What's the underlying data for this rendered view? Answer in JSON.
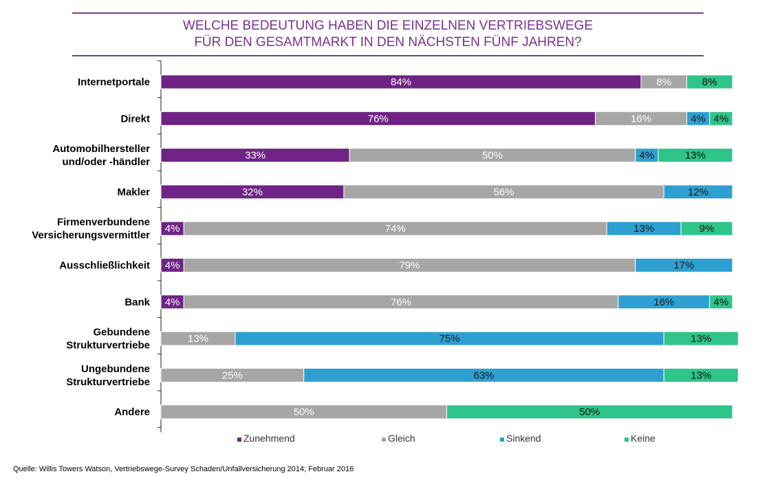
{
  "chart_data": {
    "type": "bar",
    "orientation": "horizontal",
    "stacked": true,
    "title_lines": [
      "WELCHE BEDEUTUNG HABEN DIE EINZELNEN VERTRIEBSWEGE",
      "FÜR DEN GESAMTMARKT IN DEN NÄCHSTEN FÜNF JAHREN?"
    ],
    "categories": [
      [
        "Internetportale"
      ],
      [
        "Direkt"
      ],
      [
        "Automobilhersteller",
        "und/oder -händler"
      ],
      [
        "Makler"
      ],
      [
        "Firmenverbundene",
        "Versicherungsvermittler"
      ],
      [
        "Ausschließlichkeit"
      ],
      [
        "Bank"
      ],
      [
        "Gebundene",
        "Strukturvertriebe"
      ],
      [
        "Ungebundene",
        "Strukturvertriebe"
      ],
      [
        "Andere"
      ]
    ],
    "series": [
      {
        "name": "Zunehmend",
        "color": "#6f2384",
        "values": [
          84,
          76,
          33,
          32,
          4,
          4,
          4,
          0,
          0,
          0
        ]
      },
      {
        "name": "Gleich",
        "color": "#a6a6a6",
        "values": [
          8,
          16,
          50,
          56,
          74,
          79,
          76,
          13,
          25,
          50
        ]
      },
      {
        "name": "Sinkend",
        "color": "#2e9fd1",
        "values": [
          0,
          4,
          4,
          12,
          13,
          17,
          16,
          75,
          63,
          0
        ]
      },
      {
        "name": "Keine",
        "color": "#2ec48a",
        "values": [
          8,
          4,
          13,
          0,
          9,
          0,
          4,
          13,
          13,
          50
        ]
      }
    ],
    "xlim": [
      0,
      100
    ],
    "value_suffix": "%",
    "legend_position": "bottom"
  },
  "source": "Quelle: Willis Towers Watson, Vertriebswege-Survey Schaden/Unfallversicherung 2014; Februar 2016"
}
